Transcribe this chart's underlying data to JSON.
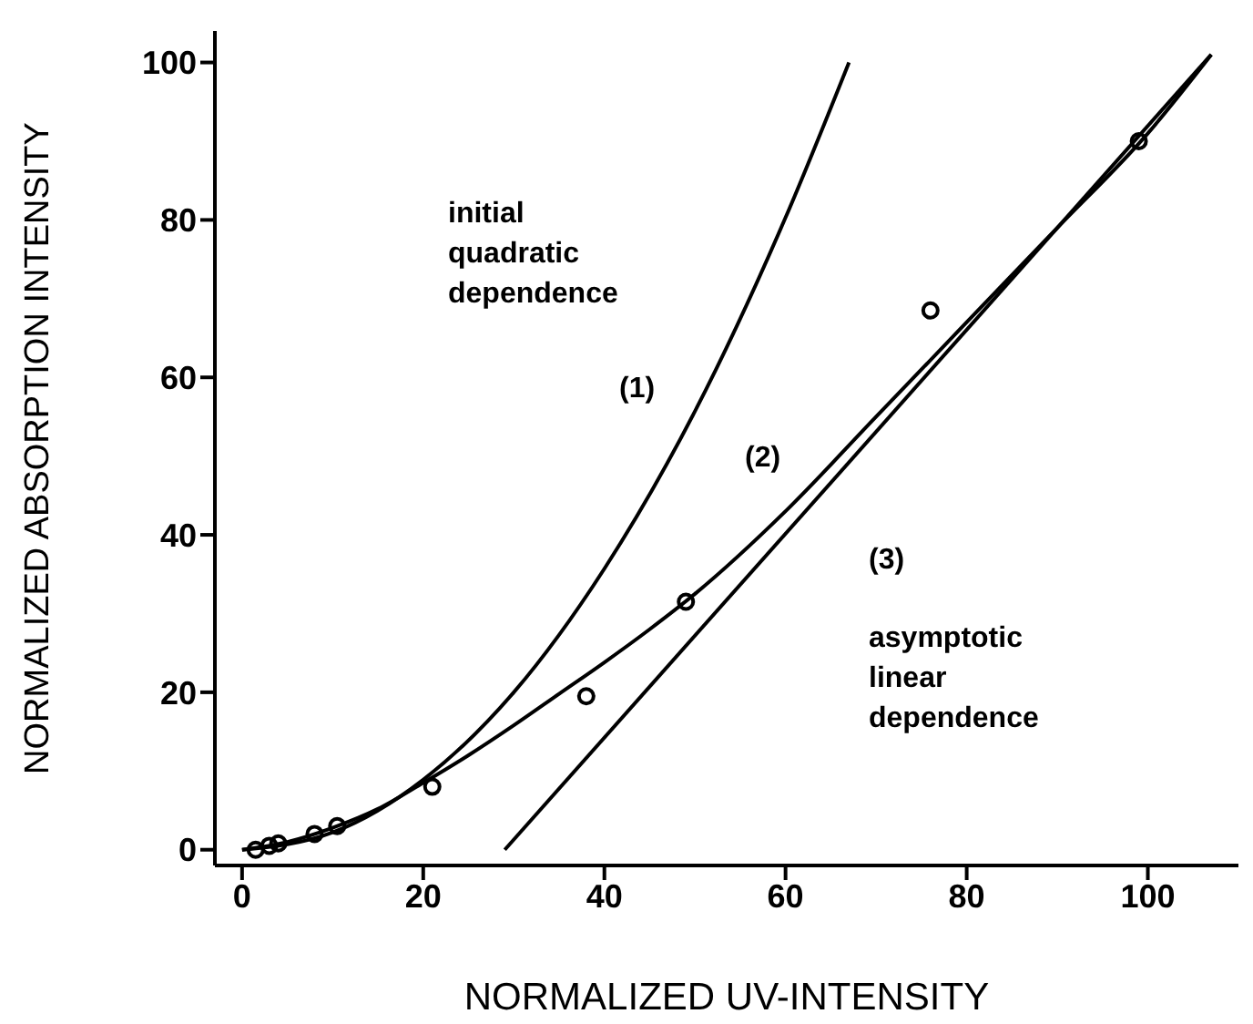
{
  "chart_data": {
    "type": "line",
    "xlabel": "NORMALIZED UV-INTENSITY",
    "ylabel": "NORMALIZED ABSORPTION INTENSITY",
    "xlim": [
      -3,
      110
    ],
    "ylim": [
      -2,
      104
    ],
    "xticks": [
      0,
      20,
      40,
      60,
      80,
      100
    ],
    "yticks": [
      0,
      20,
      40,
      60,
      80,
      100
    ],
    "grid": false,
    "legend": false,
    "series": [
      {
        "type": "scatter",
        "color": "#000000",
        "marker": "circle",
        "x": [
          1.5,
          3,
          4,
          8,
          10.5,
          21,
          38,
          49,
          76,
          99
        ],
        "values": [
          0,
          0.5,
          0.8,
          2,
          3,
          8,
          19.5,
          31.5,
          68.5,
          90
        ]
      },
      {
        "color": "#000000",
        "marker": "none",
        "x": [
          0,
          10,
          20,
          30,
          40,
          50,
          60,
          67
        ],
        "values": [
          0,
          2.2,
          8.9,
          20,
          35.7,
          55.7,
          80.3,
          100
        ]
      },
      {
        "color": "#000000",
        "marker": "none",
        "x": [
          0,
          5,
          10,
          15,
          20,
          25,
          30,
          35,
          40,
          45,
          50,
          60,
          70,
          80,
          90,
          100,
          107
        ],
        "values": [
          0,
          1,
          2.8,
          5.2,
          8.5,
          12,
          15.8,
          19.8,
          23.8,
          28,
          32.5,
          43,
          55,
          67,
          79,
          91,
          101
        ]
      },
      {
        "color": "#000000",
        "marker": "none",
        "x": [
          29,
          107
        ],
        "values": [
          0,
          101
        ]
      }
    ],
    "annotations": [
      "initial quadratic dependence",
      "(1)",
      "(2)",
      "(3)",
      "asymptotic linear dependence"
    ]
  }
}
